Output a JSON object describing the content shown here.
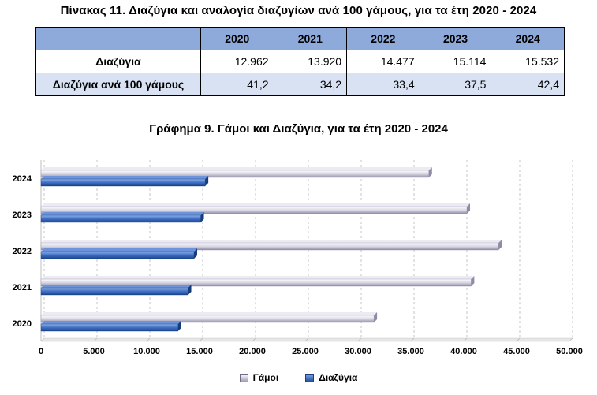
{
  "table": {
    "title": "Πίνακας 11. Διαζύγια και αναλογία διαζυγίων ανά 100 γάμους, για τα έτη 2020 - 2024",
    "years": [
      "2020",
      "2021",
      "2022",
      "2023",
      "2024"
    ],
    "rows": [
      {
        "label": "Διαζύγια",
        "values": [
          "12.962",
          "13.920",
          "14.477",
          "15.114",
          "15.532"
        ]
      },
      {
        "label": "Διαζύγια ανά 100 γάμους",
        "values": [
          "41,2",
          "34,2",
          "33,4",
          "37,5",
          "42,4"
        ]
      }
    ],
    "header_color": "#8eaadb",
    "shaded_row_color": "#d9e2f3"
  },
  "chart_data": {
    "type": "bar",
    "orientation": "horizontal",
    "title": "Γράφημα 9. Γάμοι και Διαζύγια, για τα έτη 2020 - 2024",
    "categories": [
      "2020",
      "2021",
      "2022",
      "2023",
      "2024"
    ],
    "series": [
      {
        "name": "Γάμοι",
        "values": [
          31500,
          40700,
          43300,
          40300,
          36700
        ],
        "color": "#a6a3bc"
      },
      {
        "name": "Διαζύγια",
        "values": [
          12962,
          13920,
          14477,
          15114,
          15532
        ],
        "color": "#2f5cb0"
      }
    ],
    "xlim": [
      0,
      50000
    ],
    "x_ticks": [
      "0",
      "5.000",
      "10.000",
      "15.000",
      "20.000",
      "25.000",
      "30.000",
      "35.000",
      "40.000",
      "45.000",
      "50.000"
    ],
    "x_tick_values": [
      0,
      5000,
      10000,
      15000,
      20000,
      25000,
      30000,
      35000,
      40000,
      45000,
      50000
    ],
    "grid": "vertical dashed",
    "legend_position": "bottom",
    "style": "3d bars"
  }
}
